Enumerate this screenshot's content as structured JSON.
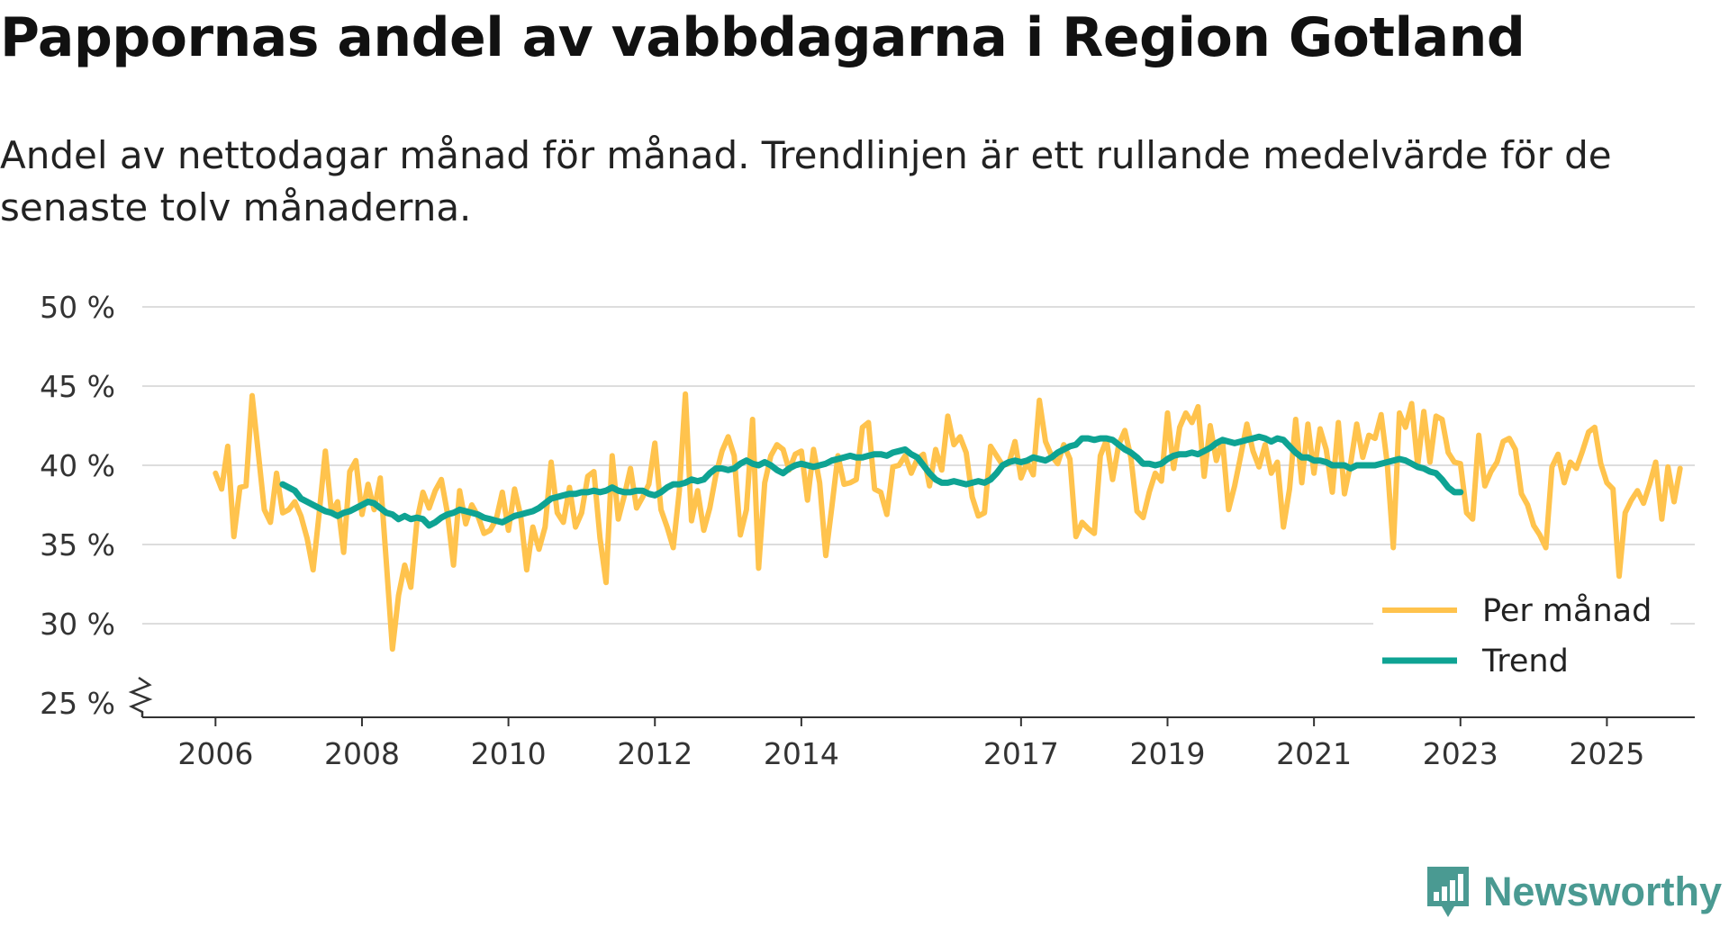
{
  "title": "Pappornas andel av vabbdagarna i Region Gotland",
  "subtitle": "Andel av nettodagar månad för månad. Trendlinjen är ett rullande medelvärde för de senaste tolv månaderna.",
  "brand": {
    "name": "Newsworthy",
    "icon": "bar-chart-badge-icon",
    "color": "#4a9a92"
  },
  "chart_data": {
    "type": "line",
    "title": "Pappornas andel av vabbdagarna i Region Gotland",
    "xlabel": "",
    "ylabel": "",
    "ylim": [
      25,
      50
    ],
    "xlim": [
      2005.0,
      2026.2
    ],
    "y_ticks": [
      25,
      30,
      35,
      40,
      45,
      50
    ],
    "y_tick_labels": [
      "25 %",
      "30 %",
      "35 %",
      "40 %",
      "45 %",
      "50 %"
    ],
    "x_ticks": [
      2006,
      2008,
      2010,
      2012,
      2014,
      2017,
      2019,
      2021,
      2023,
      2025
    ],
    "x_tick_labels": [
      "2006",
      "2008",
      "2010",
      "2012",
      "2014",
      "2017",
      "2019",
      "2021",
      "2023",
      "2025"
    ],
    "axis_break": true,
    "grid": true,
    "legend_position": "bottom-right",
    "colors": {
      "monthly": "#ffc34d",
      "trend": "#0ea393",
      "grid": "#dddddd",
      "axis": "#333333"
    },
    "series": [
      {
        "name": "Per månad",
        "start": "2006-01",
        "values": [
          39.5,
          38.5,
          41.2,
          35.5,
          38.6,
          38.7,
          44.4,
          40.8,
          37.2,
          36.4,
          39.5,
          37.0,
          37.2,
          37.7,
          36.8,
          35.4,
          33.4,
          37.0,
          40.9,
          37.0,
          37.7,
          34.5,
          39.6,
          40.3,
          36.9,
          38.8,
          37.2,
          39.2,
          33.8,
          28.4,
          31.8,
          33.7,
          32.3,
          36.5,
          38.3,
          37.3,
          38.4,
          39.1,
          37.0,
          33.7,
          38.4,
          36.3,
          37.5,
          36.8,
          35.7,
          35.9,
          36.6,
          38.3,
          35.9,
          38.5,
          36.8,
          33.4,
          36.1,
          34.7,
          36.1,
          40.2,
          37.0,
          36.4,
          38.6,
          36.1,
          37.0,
          39.3,
          39.6,
          35.4,
          32.6,
          40.6,
          36.6,
          38.1,
          39.8,
          37.3,
          38.0,
          38.8,
          41.4,
          37.2,
          36.1,
          34.8,
          38.4,
          44.5,
          36.5,
          38.4,
          35.9,
          37.3,
          39.4,
          40.9,
          41.8,
          40.6,
          35.6,
          37.2,
          42.9,
          33.5,
          38.9,
          40.6,
          41.3,
          41.0,
          39.7,
          40.7,
          40.9,
          37.8,
          41.0,
          38.9,
          34.3,
          37.4,
          40.6,
          38.8,
          38.9,
          39.1,
          42.4,
          42.7,
          38.5,
          38.3,
          36.9,
          39.9,
          40.0,
          40.6,
          39.5,
          40.4,
          40.7,
          38.7,
          41.0,
          39.7,
          43.1,
          41.3,
          41.8,
          40.8,
          38.0,
          36.8,
          37.0,
          41.2,
          40.6,
          40.0,
          40.1,
          41.5,
          39.2,
          40.2,
          39.4,
          44.1,
          41.5,
          40.6,
          40.1,
          41.3,
          40.4,
          35.5,
          36.4,
          36.0,
          35.7,
          40.6,
          41.6,
          39.1,
          41.3,
          42.2,
          40.5,
          37.1,
          36.7,
          38.3,
          39.5,
          39.0,
          43.3,
          39.8,
          42.4,
          43.3,
          42.7,
          43.7,
          39.3,
          42.5,
          40.3,
          41.6,
          37.2,
          38.7,
          40.6,
          42.6,
          40.9,
          39.9,
          41.3,
          39.5,
          40.2,
          36.1,
          38.5,
          42.9,
          38.9,
          42.6,
          39.5,
          42.3,
          41.0,
          38.3,
          42.7,
          38.2,
          40.1,
          42.6,
          40.5,
          41.9,
          41.7,
          43.2,
          40.1,
          34.8,
          43.3,
          42.4,
          43.9,
          40.0,
          43.4,
          40.2,
          43.1,
          42.9,
          40.8,
          40.2,
          40.1,
          37.0,
          36.6,
          41.9,
          38.7,
          39.6,
          40.2,
          41.5,
          41.7,
          41.0,
          38.2,
          37.5,
          36.2,
          35.6,
          34.8,
          39.9,
          40.7,
          38.9,
          40.2,
          39.8,
          40.9,
          42.1,
          42.4,
          40.1,
          38.9,
          38.5,
          33.0,
          37.0,
          37.8,
          38.4,
          37.6,
          38.8,
          40.2,
          36.6,
          39.9,
          37.7,
          39.8
        ]
      },
      {
        "name": "Trend",
        "start": "2006-12",
        "values": [
          38.8,
          38.6,
          38.4,
          37.9,
          37.7,
          37.5,
          37.3,
          37.1,
          37.0,
          36.8,
          37.0,
          37.1,
          37.3,
          37.5,
          37.7,
          37.6,
          37.3,
          37.0,
          36.9,
          36.6,
          36.8,
          36.6,
          36.7,
          36.6,
          36.2,
          36.4,
          36.7,
          36.9,
          37.0,
          37.2,
          37.1,
          37.0,
          36.9,
          36.7,
          36.6,
          36.5,
          36.4,
          36.6,
          36.8,
          36.9,
          37.0,
          37.1,
          37.3,
          37.6,
          37.9,
          38.0,
          38.1,
          38.2,
          38.2,
          38.3,
          38.3,
          38.4,
          38.3,
          38.4,
          38.6,
          38.4,
          38.3,
          38.3,
          38.4,
          38.4,
          38.2,
          38.1,
          38.3,
          38.6,
          38.8,
          38.8,
          38.9,
          39.1,
          39.0,
          39.1,
          39.5,
          39.8,
          39.8,
          39.7,
          39.8,
          40.1,
          40.3,
          40.1,
          40.0,
          40.2,
          40.0,
          39.7,
          39.5,
          39.8,
          40.0,
          40.1,
          40.0,
          39.9,
          40.0,
          40.1,
          40.3,
          40.4,
          40.5,
          40.6,
          40.5,
          40.5,
          40.6,
          40.7,
          40.7,
          40.6,
          40.8,
          40.9,
          41.0,
          40.7,
          40.5,
          40.0,
          39.5,
          39.1,
          38.9,
          38.9,
          39.0,
          38.9,
          38.8,
          38.9,
          39.0,
          38.9,
          39.1,
          39.5,
          40.0,
          40.2,
          40.3,
          40.2,
          40.3,
          40.5,
          40.4,
          40.3,
          40.5,
          40.8,
          41.0,
          41.2,
          41.3,
          41.7,
          41.7,
          41.6,
          41.7,
          41.7,
          41.6,
          41.3,
          41.0,
          40.8,
          40.5,
          40.1,
          40.1,
          40.0,
          40.1,
          40.4,
          40.6,
          40.7,
          40.7,
          40.8,
          40.7,
          40.9,
          41.1,
          41.4,
          41.6,
          41.5,
          41.4,
          41.5,
          41.6,
          41.7,
          41.8,
          41.7,
          41.5,
          41.7,
          41.6,
          41.2,
          40.8,
          40.5,
          40.5,
          40.3,
          40.3,
          40.2,
          40.0,
          40.0,
          40.0,
          39.8,
          40.0,
          40.0,
          40.0,
          40.0,
          40.1,
          40.2,
          40.3,
          40.4,
          40.3,
          40.1,
          39.9,
          39.8,
          39.6,
          39.5,
          39.1,
          38.6,
          38.3,
          38.3
        ]
      }
    ]
  }
}
